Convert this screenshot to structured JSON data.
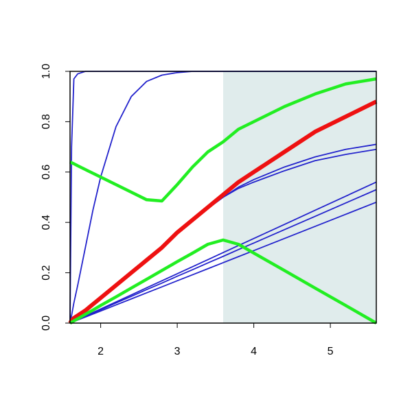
{
  "chart_data": {
    "type": "line",
    "x": [
      1.6,
      1.62,
      1.65,
      1.7,
      1.8,
      1.9,
      2.0,
      2.2,
      2.4,
      2.6,
      2.8,
      3.0,
      3.2,
      3.4,
      3.6,
      3.8,
      4.0,
      4.4,
      4.8,
      5.2,
      5.6
    ],
    "series": [
      {
        "color": "#2222cc",
        "width": 1.8,
        "values": [
          0,
          0.7,
          0.97,
          0.99,
          1,
          1,
          1,
          1,
          1,
          1,
          1,
          1,
          1,
          1,
          1,
          1,
          1,
          1,
          1,
          1,
          1
        ]
      },
      {
        "color": "#2222cc",
        "width": 1.8,
        "values": [
          0,
          0.03,
          0.08,
          0.15,
          0.3,
          0.45,
          0.58,
          0.78,
          0.9,
          0.96,
          0.985,
          0.995,
          1,
          1,
          1,
          1,
          1,
          1,
          1,
          1,
          1
        ]
      },
      {
        "color": "#2222cc",
        "width": 1.8,
        "values": [
          0,
          0.01,
          0.02,
          0.03,
          0.05,
          0.075,
          0.1,
          0.15,
          0.2,
          0.25,
          0.3,
          0.355,
          0.405,
          0.455,
          0.5,
          0.54,
          0.57,
          0.62,
          0.66,
          0.69,
          0.71
        ]
      },
      {
        "color": "#2222cc",
        "width": 1.8,
        "values": [
          0,
          0.01,
          0.02,
          0.03,
          0.05,
          0.075,
          0.1,
          0.15,
          0.2,
          0.25,
          0.3,
          0.355,
          0.405,
          0.455,
          0.5,
          0.535,
          0.56,
          0.605,
          0.645,
          0.67,
          0.69
        ]
      },
      {
        "color": "#2222cc",
        "width": 1.8,
        "values": [
          0,
          0.003,
          0.007,
          0.014,
          0.028,
          0.042,
          0.056,
          0.084,
          0.112,
          0.14,
          0.168,
          0.196,
          0.224,
          0.252,
          0.28,
          0.308,
          0.336,
          0.392,
          0.448,
          0.504,
          0.56
        ]
      },
      {
        "color": "#2222cc",
        "width": 1.8,
        "values": [
          0,
          0.003,
          0.007,
          0.013,
          0.027,
          0.04,
          0.053,
          0.08,
          0.106,
          0.133,
          0.159,
          0.186,
          0.212,
          0.239,
          0.265,
          0.292,
          0.318,
          0.371,
          0.424,
          0.477,
          0.53
        ]
      },
      {
        "color": "#2222cc",
        "width": 1.8,
        "values": [
          0,
          0.002,
          0.006,
          0.012,
          0.024,
          0.036,
          0.048,
          0.072,
          0.096,
          0.12,
          0.144,
          0.168,
          0.192,
          0.216,
          0.24,
          0.264,
          0.288,
          0.336,
          0.384,
          0.432,
          0.48
        ]
      },
      {
        "color": "#ee1111",
        "width": 6,
        "values": [
          0,
          0.01,
          0.02,
          0.03,
          0.05,
          0.075,
          0.1,
          0.15,
          0.2,
          0.25,
          0.3,
          0.36,
          0.41,
          0.46,
          0.51,
          0.56,
          0.6,
          0.68,
          0.76,
          0.82,
          0.88
        ]
      },
      {
        "color": "#22ee22",
        "width": 4.5,
        "values": [
          0.64,
          0.637,
          0.633,
          0.625,
          0.61,
          0.595,
          0.58,
          0.55,
          0.52,
          0.49,
          0.485,
          0.55,
          0.62,
          0.68,
          0.72,
          0.77,
          0.8,
          0.86,
          0.91,
          0.95,
          0.97
        ]
      },
      {
        "color": "#22ee22",
        "width": 4.5,
        "values": [
          0,
          0.003,
          0.009,
          0.017,
          0.035,
          0.052,
          0.07,
          0.104,
          0.139,
          0.174,
          0.209,
          0.244,
          0.278,
          0.313,
          0.33,
          0.313,
          0.278,
          0.209,
          0.139,
          0.07,
          0
        ]
      }
    ],
    "shaded_region": {
      "x": [
        3.6,
        5.6
      ],
      "color": "#e0ecec"
    },
    "xlim": [
      1.6,
      5.6
    ],
    "ylim": [
      0,
      1
    ],
    "xticks": [
      2,
      3,
      4,
      5
    ],
    "yticks": [
      {
        "value": 0,
        "label": "0.0"
      },
      {
        "value": 0.2,
        "label": "0.2"
      },
      {
        "value": 0.4,
        "label": "0.4"
      },
      {
        "value": 0.6,
        "label": "0.6"
      },
      {
        "value": 0.8,
        "label": "0.8"
      },
      {
        "value": 1,
        "label": "1.0"
      }
    ]
  }
}
